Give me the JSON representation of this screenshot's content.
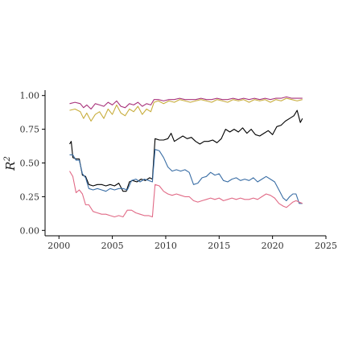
{
  "chart_data": {
    "type": "line",
    "title": "",
    "xlabel": "",
    "ylabel": "R",
    "ylabel_sup": "2",
    "xlim": [
      1998.7,
      2025
    ],
    "ylim": [
      -0.04,
      1.04
    ],
    "xticks": [
      2000,
      2005,
      2010,
      2015,
      2020,
      2025
    ],
    "yticks": [
      0.0,
      0.25,
      0.5,
      0.75,
      1.0
    ],
    "xtick_labels": [
      "2000",
      "2005",
      "2010",
      "2015",
      "2020",
      "2025"
    ],
    "ytick_labels": [
      "0.00",
      "0.25",
      "0.50",
      "0.75",
      "1.00"
    ],
    "grid": false,
    "legend": "none",
    "series": [
      {
        "color": "#c8ad3c",
        "x": [
          2001.0,
          2001.5,
          2002.0,
          2002.3,
          2002.6,
          2003.0,
          2003.4,
          2003.8,
          2004.2,
          2004.6,
          2005.0,
          2005.4,
          2005.8,
          2006.2,
          2006.6,
          2007.0,
          2007.4,
          2007.8,
          2008.2,
          2008.6,
          2008.9,
          2009.3,
          2009.8,
          2010.3,
          2010.8,
          2011.3,
          2011.8,
          2012.3,
          2012.8,
          2013.3,
          2013.8,
          2014.3,
          2014.8,
          2015.3,
          2015.8,
          2016.3,
          2016.8,
          2017.3,
          2017.8,
          2018.3,
          2018.8,
          2019.3,
          2019.8,
          2020.3,
          2020.8,
          2021.3,
          2021.8,
          2022.3,
          2022.8
        ],
        "y": [
          0.89,
          0.9,
          0.88,
          0.83,
          0.87,
          0.81,
          0.86,
          0.88,
          0.83,
          0.9,
          0.86,
          0.93,
          0.87,
          0.85,
          0.9,
          0.88,
          0.92,
          0.86,
          0.9,
          0.88,
          0.95,
          0.96,
          0.94,
          0.96,
          0.95,
          0.97,
          0.96,
          0.95,
          0.96,
          0.97,
          0.96,
          0.95,
          0.97,
          0.96,
          0.95,
          0.97,
          0.96,
          0.97,
          0.95,
          0.97,
          0.96,
          0.97,
          0.95,
          0.97,
          0.96,
          0.98,
          0.97,
          0.96,
          0.97
        ]
      },
      {
        "color": "#a8327a",
        "x": [
          2001.0,
          2001.5,
          2002.0,
          2002.3,
          2002.6,
          2003.0,
          2003.4,
          2003.8,
          2004.2,
          2004.6,
          2005.0,
          2005.4,
          2005.8,
          2006.2,
          2006.6,
          2007.0,
          2007.4,
          2007.8,
          2008.2,
          2008.6,
          2008.9,
          2009.3,
          2009.8,
          2010.3,
          2010.8,
          2011.3,
          2011.8,
          2012.3,
          2012.8,
          2013.3,
          2013.8,
          2014.3,
          2014.8,
          2015.3,
          2015.8,
          2016.3,
          2016.8,
          2017.3,
          2017.8,
          2018.3,
          2018.8,
          2019.3,
          2019.8,
          2020.3,
          2020.8,
          2021.3,
          2021.8,
          2022.3,
          2022.8
        ],
        "y": [
          0.94,
          0.95,
          0.94,
          0.91,
          0.93,
          0.9,
          0.94,
          0.93,
          0.92,
          0.95,
          0.93,
          0.96,
          0.92,
          0.91,
          0.94,
          0.93,
          0.95,
          0.92,
          0.94,
          0.93,
          0.97,
          0.97,
          0.96,
          0.97,
          0.97,
          0.98,
          0.97,
          0.97,
          0.97,
          0.98,
          0.97,
          0.97,
          0.98,
          0.97,
          0.97,
          0.98,
          0.97,
          0.98,
          0.97,
          0.98,
          0.97,
          0.98,
          0.97,
          0.98,
          0.98,
          0.99,
          0.98,
          0.98,
          0.98
        ]
      },
      {
        "color": "#000000",
        "x": [
          2001.0,
          2001.15,
          2001.3,
          2001.6,
          2001.9,
          2002.2,
          2002.5,
          2002.8,
          2003.2,
          2003.6,
          2004.0,
          2004.4,
          2004.8,
          2005.2,
          2005.6,
          2006.0,
          2006.3,
          2006.6,
          2006.9,
          2007.3,
          2007.7,
          2008.1,
          2008.5,
          2008.75,
          2008.85,
          2009.0,
          2009.4,
          2009.8,
          2010.2,
          2010.5,
          2010.8,
          2011.2,
          2011.6,
          2012.0,
          2012.4,
          2012.8,
          2013.2,
          2013.6,
          2014.0,
          2014.4,
          2014.8,
          2015.2,
          2015.6,
          2016.0,
          2016.4,
          2016.8,
          2017.2,
          2017.6,
          2018.0,
          2018.4,
          2018.8,
          2019.2,
          2019.6,
          2020.0,
          2020.4,
          2020.8,
          2021.2,
          2021.6,
          2022.0,
          2022.3,
          2022.6,
          2022.8
        ],
        "y": [
          0.64,
          0.66,
          0.54,
          0.53,
          0.53,
          0.41,
          0.4,
          0.34,
          0.33,
          0.34,
          0.34,
          0.33,
          0.34,
          0.33,
          0.35,
          0.29,
          0.29,
          0.36,
          0.37,
          0.36,
          0.38,
          0.37,
          0.39,
          0.38,
          0.5,
          0.68,
          0.67,
          0.67,
          0.68,
          0.72,
          0.66,
          0.68,
          0.7,
          0.68,
          0.69,
          0.66,
          0.64,
          0.66,
          0.66,
          0.67,
          0.65,
          0.68,
          0.75,
          0.73,
          0.75,
          0.73,
          0.76,
          0.72,
          0.75,
          0.71,
          0.7,
          0.72,
          0.74,
          0.71,
          0.77,
          0.78,
          0.81,
          0.83,
          0.85,
          0.89,
          0.8,
          0.83
        ]
      },
      {
        "color": "#3a6ea5",
        "x": [
          2001.0,
          2001.3,
          2001.6,
          2001.9,
          2002.2,
          2002.5,
          2002.8,
          2003.2,
          2003.6,
          2004.0,
          2004.4,
          2004.8,
          2005.2,
          2005.6,
          2006.0,
          2006.4,
          2006.8,
          2007.2,
          2007.6,
          2008.0,
          2008.4,
          2008.75,
          2008.85,
          2009.0,
          2009.4,
          2009.8,
          2010.2,
          2010.6,
          2011.0,
          2011.4,
          2011.8,
          2012.2,
          2012.6,
          2013.0,
          2013.4,
          2013.8,
          2014.2,
          2014.6,
          2015.0,
          2015.4,
          2015.8,
          2016.2,
          2016.6,
          2017.0,
          2017.4,
          2017.8,
          2018.2,
          2018.6,
          2019.0,
          2019.4,
          2019.8,
          2020.2,
          2020.6,
          2021.0,
          2021.3,
          2021.6,
          2021.9,
          2022.2,
          2022.5,
          2022.8
        ],
        "y": [
          0.56,
          0.56,
          0.52,
          0.52,
          0.42,
          0.39,
          0.31,
          0.3,
          0.31,
          0.3,
          0.29,
          0.31,
          0.3,
          0.31,
          0.31,
          0.3,
          0.37,
          0.38,
          0.36,
          0.38,
          0.37,
          0.36,
          0.46,
          0.6,
          0.59,
          0.54,
          0.47,
          0.44,
          0.45,
          0.44,
          0.45,
          0.43,
          0.34,
          0.35,
          0.39,
          0.4,
          0.43,
          0.41,
          0.42,
          0.37,
          0.36,
          0.38,
          0.39,
          0.37,
          0.38,
          0.37,
          0.39,
          0.36,
          0.38,
          0.4,
          0.38,
          0.36,
          0.3,
          0.24,
          0.22,
          0.25,
          0.27,
          0.27,
          0.2,
          0.2
        ]
      },
      {
        "color": "#e16a86",
        "x": [
          2001.0,
          2001.3,
          2001.6,
          2001.9,
          2002.2,
          2002.5,
          2002.8,
          2003.2,
          2003.6,
          2004.0,
          2004.4,
          2004.8,
          2005.2,
          2005.6,
          2006.0,
          2006.4,
          2006.8,
          2007.2,
          2007.6,
          2008.0,
          2008.4,
          2008.75,
          2008.85,
          2009.0,
          2009.4,
          2009.8,
          2010.2,
          2010.6,
          2011.0,
          2011.4,
          2011.8,
          2012.2,
          2012.6,
          2013.0,
          2013.4,
          2013.8,
          2014.2,
          2014.6,
          2015.0,
          2015.4,
          2015.8,
          2016.2,
          2016.6,
          2017.0,
          2017.4,
          2017.8,
          2018.2,
          2018.6,
          2019.0,
          2019.4,
          2019.8,
          2020.2,
          2020.6,
          2021.0,
          2021.3,
          2021.6,
          2021.9,
          2022.2,
          2022.5,
          2022.8
        ],
        "y": [
          0.44,
          0.4,
          0.28,
          0.3,
          0.27,
          0.19,
          0.19,
          0.14,
          0.13,
          0.12,
          0.12,
          0.11,
          0.1,
          0.11,
          0.1,
          0.15,
          0.15,
          0.13,
          0.12,
          0.11,
          0.11,
          0.1,
          0.2,
          0.34,
          0.33,
          0.29,
          0.27,
          0.26,
          0.27,
          0.26,
          0.25,
          0.25,
          0.22,
          0.21,
          0.22,
          0.23,
          0.24,
          0.23,
          0.24,
          0.22,
          0.23,
          0.24,
          0.23,
          0.24,
          0.23,
          0.23,
          0.24,
          0.23,
          0.25,
          0.27,
          0.26,
          0.24,
          0.2,
          0.18,
          0.17,
          0.19,
          0.21,
          0.22,
          0.21,
          0.2
        ]
      }
    ]
  }
}
